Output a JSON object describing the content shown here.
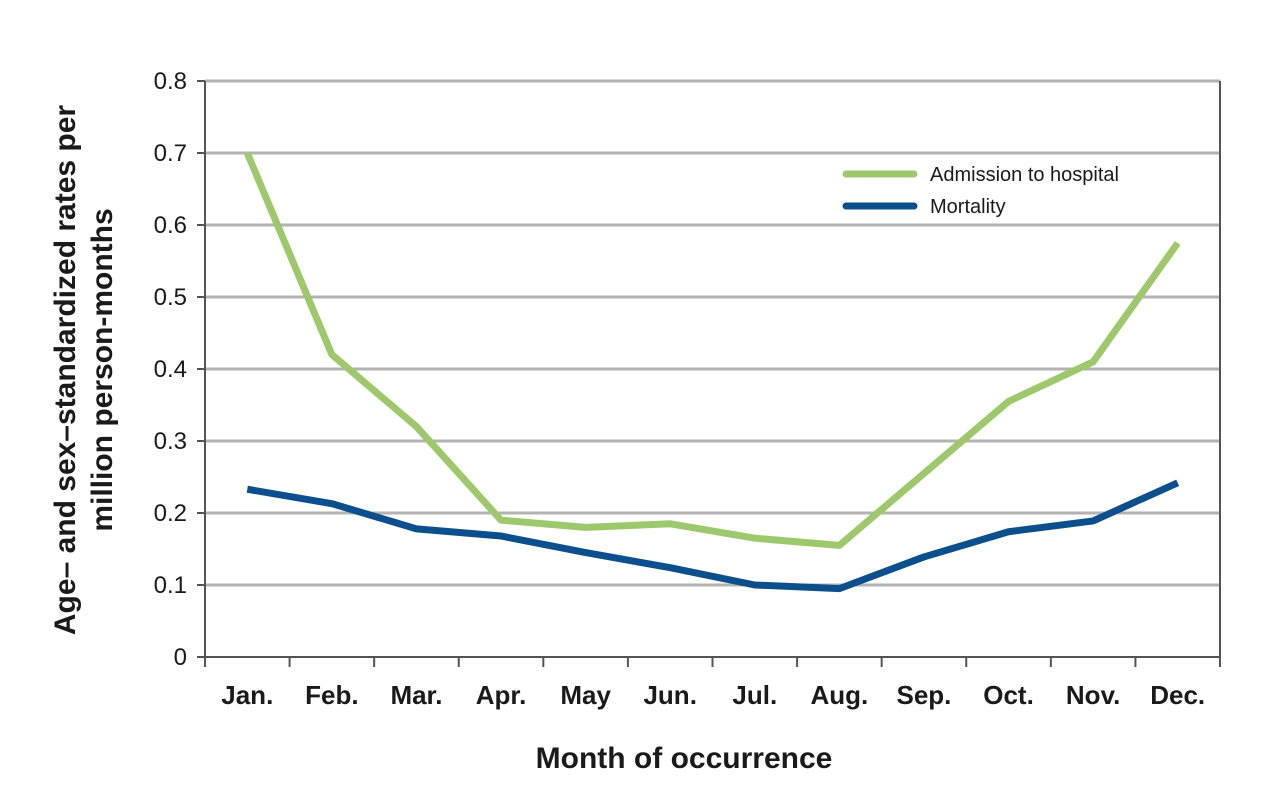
{
  "chart_data": {
    "type": "line",
    "categories": [
      "Jan.",
      "Feb.",
      "Mar.",
      "Apr.",
      "May",
      "Jun.",
      "Jul.",
      "Aug.",
      "Sep.",
      "Oct.",
      "Nov.",
      "Dec."
    ],
    "series": [
      {
        "name": "Admission to hospital",
        "color": "#9dc86c",
        "values": [
          0.7,
          0.42,
          0.32,
          0.19,
          0.18,
          0.185,
          0.165,
          0.155,
          0.255,
          0.355,
          0.41,
          0.575
        ]
      },
      {
        "name": "Mortality",
        "color": "#0b4f8c",
        "values": [
          0.233,
          0.213,
          0.178,
          0.168,
          0.145,
          0.124,
          0.1,
          0.095,
          0.139,
          0.174,
          0.189,
          0.242
        ]
      }
    ],
    "xlabel": "Month of occurrence",
    "ylabel_lines": [
      "Age– and sex–standardized rates per",
      "million person-months"
    ],
    "ylim": [
      0,
      0.8
    ],
    "yticks": [
      "0",
      "0.1",
      "0.2",
      "0.3",
      "0.4",
      "0.5",
      "0.6",
      "0.7",
      "0.8"
    ],
    "grid": true,
    "legend_position": "top-right"
  }
}
